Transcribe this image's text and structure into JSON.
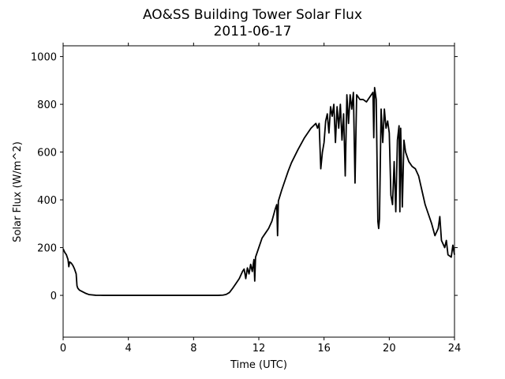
{
  "chart_data": {
    "type": "line",
    "title": "AO&SS Building Tower Solar Flux",
    "subtitle": "2011-06-17",
    "xlabel": "Time (UTC)",
    "ylabel": "Solar Flux (W/m^2)",
    "xlim": [
      0,
      24
    ],
    "xticks": [
      0,
      4,
      8,
      12,
      16,
      20,
      24
    ],
    "ylim": [
      -175,
      1045
    ],
    "yticks": [
      0,
      200,
      400,
      600,
      800,
      1000
    ],
    "grid": false,
    "series": [
      {
        "name": "Solar Flux",
        "color": "#000000",
        "x": [
          0,
          0.1,
          0.2,
          0.3,
          0.35,
          0.4,
          0.5,
          0.6,
          0.7,
          0.8,
          0.85,
          0.9,
          1.0,
          1.2,
          1.4,
          1.6,
          2.0,
          2.5,
          4,
          6,
          8,
          9.5,
          9.8,
          10,
          10.2,
          10.4,
          10.6,
          10.8,
          11,
          11.1,
          11.2,
          11.3,
          11.4,
          11.5,
          11.6,
          11.7,
          11.75,
          11.8,
          12,
          12.2,
          12.4,
          12.6,
          12.8,
          13,
          13.1,
          13.15,
          13.2,
          13.4,
          13.6,
          13.8,
          14,
          14.4,
          14.8,
          15.2,
          15.5,
          15.6,
          15.7,
          15.8,
          15.9,
          16,
          16.1,
          16.2,
          16.3,
          16.4,
          16.5,
          16.6,
          16.7,
          16.8,
          16.9,
          17,
          17.1,
          17.2,
          17.3,
          17.4,
          17.5,
          17.6,
          17.7,
          17.8,
          17.9,
          18,
          18.2,
          18.4,
          18.6,
          18.8,
          19,
          19.05,
          19.1,
          19.2,
          19.3,
          19.35,
          19.4,
          19.5,
          19.6,
          19.7,
          19.8,
          19.9,
          20,
          20.1,
          20.2,
          20.3,
          20.4,
          20.5,
          20.6,
          20.65,
          20.7,
          20.8,
          20.9,
          21,
          21.2,
          21.4,
          21.6,
          21.8,
          22,
          22.2,
          22.4,
          22.6,
          22.8,
          23,
          23.1,
          23.2,
          23.4,
          23.5,
          23.6,
          23.8,
          23.9,
          24
        ],
        "values": [
          195,
          180,
          170,
          150,
          120,
          140,
          135,
          125,
          110,
          90,
          40,
          30,
          22,
          15,
          8,
          3,
          0.5,
          0,
          0,
          0,
          0,
          0,
          1,
          4,
          12,
          30,
          50,
          70,
          100,
          110,
          70,
          115,
          90,
          130,
          100,
          150,
          60,
          160,
          200,
          240,
          260,
          280,
          310,
          360,
          380,
          250,
          395,
          440,
          480,
          520,
          555,
          610,
          660,
          700,
          720,
          700,
          720,
          530,
          600,
          640,
          730,
          760,
          680,
          790,
          750,
          800,
          640,
          790,
          700,
          800,
          650,
          760,
          500,
          840,
          720,
          840,
          780,
          850,
          470,
          840,
          820,
          820,
          810,
          830,
          850,
          660,
          870,
          820,
          310,
          280,
          320,
          780,
          640,
          780,
          700,
          730,
          680,
          420,
          380,
          560,
          350,
          650,
          710,
          350,
          700,
          370,
          650,
          600,
          560,
          540,
          530,
          500,
          440,
          380,
          340,
          300,
          250,
          280,
          330,
          230,
          200,
          230,
          170,
          160,
          210,
          170
        ]
      }
    ]
  }
}
